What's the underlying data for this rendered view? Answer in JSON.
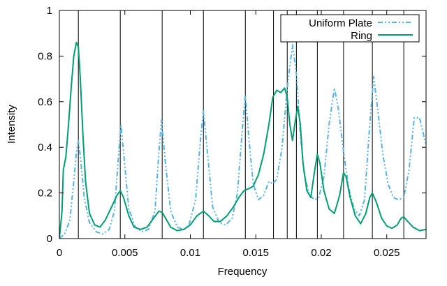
{
  "chart_data": {
    "type": "line",
    "xlabel": "Frequency",
    "ylabel": "Intensity",
    "xlim": [
      0,
      0.028
    ],
    "ylim": [
      0,
      1
    ],
    "grid": false,
    "legend_position": "top-right",
    "x_ticks": [
      {
        "value": 0,
        "label": "0"
      },
      {
        "value": 0.005,
        "label": "0.005"
      },
      {
        "value": 0.01,
        "label": "0.01"
      },
      {
        "value": 0.015,
        "label": "0.015"
      },
      {
        "value": 0.02,
        "label": "0.02"
      },
      {
        "value": 0.025,
        "label": "0.025"
      }
    ],
    "y_ticks": [
      {
        "value": 0,
        "label": "0"
      },
      {
        "value": 0.2,
        "label": "0.2"
      },
      {
        "value": 0.4,
        "label": "0.4"
      },
      {
        "value": 0.6,
        "label": "0.6"
      },
      {
        "value": 0.8,
        "label": "0.8"
      },
      {
        "value": 1,
        "label": "1"
      }
    ],
    "vertical_lines": [
      0.00145,
      0.00465,
      0.00785,
      0.011,
      0.0142,
      0.01635,
      0.0174,
      0.0181,
      0.0197,
      0.0217,
      0.0239,
      0.0263
    ],
    "series": [
      {
        "name": "Uniform Plate",
        "color": "#56b4e9",
        "dash": "dash-dot-dot",
        "points": [
          [
            0,
            0
          ],
          [
            0.0004,
            0.02
          ],
          [
            0.0008,
            0.08
          ],
          [
            0.0011,
            0.25
          ],
          [
            0.0013,
            0.38
          ],
          [
            0.00145,
            0.43
          ],
          [
            0.0016,
            0.36
          ],
          [
            0.0019,
            0.18
          ],
          [
            0.0023,
            0.07
          ],
          [
            0.0028,
            0.03
          ],
          [
            0.0033,
            0.02
          ],
          [
            0.0038,
            0.04
          ],
          [
            0.0042,
            0.12
          ],
          [
            0.0045,
            0.35
          ],
          [
            0.0047,
            0.5
          ],
          [
            0.0049,
            0.38
          ],
          [
            0.0053,
            0.13
          ],
          [
            0.0058,
            0.05
          ],
          [
            0.0063,
            0.03
          ],
          [
            0.0068,
            0.04
          ],
          [
            0.0073,
            0.12
          ],
          [
            0.0076,
            0.38
          ],
          [
            0.0078,
            0.52
          ],
          [
            0.0081,
            0.33
          ],
          [
            0.0085,
            0.12
          ],
          [
            0.009,
            0.05
          ],
          [
            0.0095,
            0.04
          ],
          [
            0.0099,
            0.06
          ],
          [
            0.0104,
            0.17
          ],
          [
            0.0108,
            0.45
          ],
          [
            0.011,
            0.56
          ],
          [
            0.0113,
            0.38
          ],
          [
            0.0117,
            0.14
          ],
          [
            0.0122,
            0.07
          ],
          [
            0.0127,
            0.06
          ],
          [
            0.0132,
            0.09
          ],
          [
            0.0136,
            0.2
          ],
          [
            0.014,
            0.5
          ],
          [
            0.0142,
            0.63
          ],
          [
            0.0145,
            0.42
          ],
          [
            0.0148,
            0.24
          ],
          [
            0.0152,
            0.17
          ],
          [
            0.0156,
            0.19
          ],
          [
            0.016,
            0.25
          ],
          [
            0.0163,
            0.24
          ],
          [
            0.0166,
            0.26
          ],
          [
            0.017,
            0.4
          ],
          [
            0.0174,
            0.66
          ],
          [
            0.0178,
            0.85
          ],
          [
            0.0181,
            0.72
          ],
          [
            0.0184,
            0.46
          ],
          [
            0.0187,
            0.28
          ],
          [
            0.0191,
            0.19
          ],
          [
            0.0195,
            0.17
          ],
          [
            0.0198,
            0.18
          ],
          [
            0.0202,
            0.27
          ],
          [
            0.0206,
            0.5
          ],
          [
            0.021,
            0.66
          ],
          [
            0.0213,
            0.57
          ],
          [
            0.0217,
            0.38
          ],
          [
            0.0221,
            0.22
          ],
          [
            0.0225,
            0.13
          ],
          [
            0.0229,
            0.1
          ],
          [
            0.0233,
            0.17
          ],
          [
            0.0237,
            0.5
          ],
          [
            0.024,
            0.71
          ],
          [
            0.0243,
            0.57
          ],
          [
            0.0247,
            0.37
          ],
          [
            0.0251,
            0.24
          ],
          [
            0.0255,
            0.18
          ],
          [
            0.0259,
            0.17
          ],
          [
            0.0263,
            0.18
          ],
          [
            0.0267,
            0.3
          ],
          [
            0.0271,
            0.53
          ],
          [
            0.0275,
            0.53
          ],
          [
            0.028,
            0.41
          ]
        ]
      },
      {
        "name": "Ring",
        "color": "#009e73",
        "dash": "solid",
        "points": [
          [
            0,
            0
          ],
          [
            0.0002,
            0.12
          ],
          [
            0.0003,
            0.3
          ],
          [
            0.0005,
            0.36
          ],
          [
            0.0007,
            0.5
          ],
          [
            0.0009,
            0.66
          ],
          [
            0.0011,
            0.8
          ],
          [
            0.0013,
            0.86
          ],
          [
            0.00145,
            0.84
          ],
          [
            0.0016,
            0.7
          ],
          [
            0.0018,
            0.45
          ],
          [
            0.002,
            0.25
          ],
          [
            0.0023,
            0.11
          ],
          [
            0.0027,
            0.06
          ],
          [
            0.0031,
            0.05
          ],
          [
            0.0035,
            0.08
          ],
          [
            0.004,
            0.14
          ],
          [
            0.0044,
            0.19
          ],
          [
            0.00465,
            0.21
          ],
          [
            0.0049,
            0.18
          ],
          [
            0.0053,
            0.1
          ],
          [
            0.0057,
            0.05
          ],
          [
            0.0062,
            0.04
          ],
          [
            0.0067,
            0.05
          ],
          [
            0.0072,
            0.09
          ],
          [
            0.0076,
            0.12
          ],
          [
            0.00785,
            0.115
          ],
          [
            0.0081,
            0.09
          ],
          [
            0.0085,
            0.05
          ],
          [
            0.009,
            0.035
          ],
          [
            0.0095,
            0.04
          ],
          [
            0.01,
            0.06
          ],
          [
            0.0105,
            0.1
          ],
          [
            0.011,
            0.12
          ],
          [
            0.0114,
            0.1
          ],
          [
            0.0118,
            0.075
          ],
          [
            0.0123,
            0.075
          ],
          [
            0.0128,
            0.1
          ],
          [
            0.0133,
            0.14
          ],
          [
            0.0137,
            0.18
          ],
          [
            0.0141,
            0.21
          ],
          [
            0.0145,
            0.22
          ],
          [
            0.0148,
            0.23
          ],
          [
            0.0152,
            0.28
          ],
          [
            0.0156,
            0.37
          ],
          [
            0.016,
            0.5
          ],
          [
            0.0163,
            0.62
          ],
          [
            0.0166,
            0.65
          ],
          [
            0.0169,
            0.64
          ],
          [
            0.0172,
            0.66
          ],
          [
            0.0174,
            0.62
          ],
          [
            0.0176,
            0.5
          ],
          [
            0.0178,
            0.43
          ],
          [
            0.018,
            0.51
          ],
          [
            0.0182,
            0.58
          ],
          [
            0.0184,
            0.5
          ],
          [
            0.0186,
            0.33
          ],
          [
            0.0189,
            0.21
          ],
          [
            0.0192,
            0.18
          ],
          [
            0.0195,
            0.3
          ],
          [
            0.0197,
            0.37
          ],
          [
            0.0199,
            0.33
          ],
          [
            0.0202,
            0.21
          ],
          [
            0.0206,
            0.13
          ],
          [
            0.021,
            0.11
          ],
          [
            0.0214,
            0.19
          ],
          [
            0.0217,
            0.29
          ],
          [
            0.0219,
            0.27
          ],
          [
            0.0222,
            0.18
          ],
          [
            0.0226,
            0.1
          ],
          [
            0.023,
            0.065
          ],
          [
            0.0234,
            0.11
          ],
          [
            0.0237,
            0.18
          ],
          [
            0.0239,
            0.2
          ],
          [
            0.0242,
            0.16
          ],
          [
            0.0246,
            0.09
          ],
          [
            0.025,
            0.055
          ],
          [
            0.0254,
            0.045
          ],
          [
            0.0258,
            0.06
          ],
          [
            0.0261,
            0.09
          ],
          [
            0.0263,
            0.095
          ],
          [
            0.0266,
            0.075
          ],
          [
            0.027,
            0.05
          ],
          [
            0.0275,
            0.035
          ],
          [
            0.028,
            0.04
          ]
        ]
      }
    ]
  }
}
